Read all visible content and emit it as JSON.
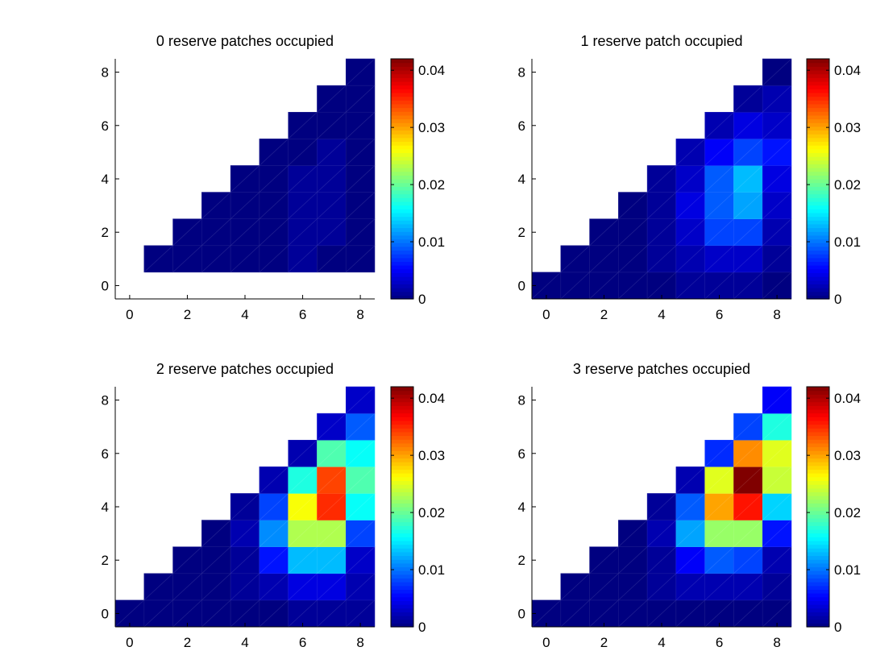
{
  "colormap": "jet",
  "chart_data": [
    {
      "type": "heatmap",
      "title": "0 reserve patches occupied",
      "x_range": [
        -0.5,
        8.5
      ],
      "y_range": [
        -0.5,
        8.5
      ],
      "x_ticks": [
        "0",
        "2",
        "4",
        "6",
        "8"
      ],
      "y_ticks": [
        "0",
        "2",
        "4",
        "6",
        "8"
      ],
      "zlim": [
        0,
        0.042
      ],
      "colorbar_ticks": [
        "0",
        "0.01",
        "0.02",
        "0.03",
        "0.04"
      ],
      "grid": [
        [
          null,
          null,
          null,
          null,
          null,
          null,
          null,
          null,
          null
        ],
        [
          null,
          0.0,
          0.0,
          0.0,
          0.0,
          0.0,
          0.001,
          0.0,
          0.0
        ],
        [
          null,
          null,
          0.0,
          0.0,
          0.0,
          0.0,
          0.001,
          0.001,
          0.0
        ],
        [
          null,
          null,
          null,
          0.0,
          0.0,
          0.0,
          0.001,
          0.001,
          0.0
        ],
        [
          null,
          null,
          null,
          null,
          0.0,
          0.0,
          0.001,
          0.001,
          0.0
        ],
        [
          null,
          null,
          null,
          null,
          null,
          0.0,
          0.0,
          0.001,
          0.0
        ],
        [
          null,
          null,
          null,
          null,
          null,
          null,
          0.0,
          0.0,
          0.0
        ],
        [
          null,
          null,
          null,
          null,
          null,
          null,
          null,
          0.0,
          0.0
        ],
        [
          null,
          null,
          null,
          null,
          null,
          null,
          null,
          null,
          0.0
        ]
      ]
    },
    {
      "type": "heatmap",
      "title": "1 reserve patch occupied",
      "x_range": [
        -0.5,
        8.5
      ],
      "y_range": [
        -0.5,
        8.5
      ],
      "x_ticks": [
        "0",
        "2",
        "4",
        "6",
        "8"
      ],
      "y_ticks": [
        "0",
        "2",
        "4",
        "6",
        "8"
      ],
      "zlim": [
        0,
        0.042
      ],
      "colorbar_ticks": [
        "0",
        "0.01",
        "0.02",
        "0.03",
        "0.04"
      ],
      "grid": [
        [
          0.0,
          0.0,
          0.0,
          0.0,
          0.0,
          0.001,
          0.001,
          0.001,
          0.0
        ],
        [
          null,
          0.0,
          0.0,
          0.0,
          0.001,
          0.002,
          0.003,
          0.003,
          0.001
        ],
        [
          null,
          null,
          0.0,
          0.0,
          0.001,
          0.003,
          0.008,
          0.008,
          0.002
        ],
        [
          null,
          null,
          null,
          0.0,
          0.001,
          0.004,
          0.009,
          0.012,
          0.003
        ],
        [
          null,
          null,
          null,
          null,
          0.001,
          0.003,
          0.009,
          0.013,
          0.004
        ],
        [
          null,
          null,
          null,
          null,
          null,
          0.002,
          0.005,
          0.008,
          0.006
        ],
        [
          null,
          null,
          null,
          null,
          null,
          null,
          0.002,
          0.004,
          0.003
        ],
        [
          null,
          null,
          null,
          null,
          null,
          null,
          null,
          0.001,
          0.002
        ],
        [
          null,
          null,
          null,
          null,
          null,
          null,
          null,
          null,
          0.0
        ]
      ]
    },
    {
      "type": "heatmap",
      "title": "2 reserve patches occupied",
      "x_range": [
        -0.5,
        8.5
      ],
      "y_range": [
        -0.5,
        8.5
      ],
      "x_ticks": [
        "0",
        "2",
        "4",
        "6",
        "8"
      ],
      "y_ticks": [
        "0",
        "2",
        "4",
        "6",
        "8"
      ],
      "zlim": [
        0,
        0.042
      ],
      "colorbar_ticks": [
        "0",
        "0.01",
        "0.02",
        "0.03",
        "0.04"
      ],
      "grid": [
        [
          0.0,
          0.0,
          0.0,
          0.0,
          0.0,
          0.0,
          0.001,
          0.001,
          0.001
        ],
        [
          null,
          0.0,
          0.0,
          0.0,
          0.001,
          0.002,
          0.004,
          0.004,
          0.002
        ],
        [
          null,
          null,
          0.0,
          0.0,
          0.001,
          0.006,
          0.013,
          0.013,
          0.003
        ],
        [
          null,
          null,
          null,
          0.0,
          0.002,
          0.011,
          0.023,
          0.023,
          0.008
        ],
        [
          null,
          null,
          null,
          null,
          0.001,
          0.008,
          0.026,
          0.035,
          0.016
        ],
        [
          null,
          null,
          null,
          null,
          null,
          0.002,
          0.017,
          0.034,
          0.019
        ],
        [
          null,
          null,
          null,
          null,
          null,
          null,
          0.002,
          0.019,
          0.016
        ],
        [
          null,
          null,
          null,
          null,
          null,
          null,
          null,
          0.003,
          0.009
        ],
        [
          null,
          null,
          null,
          null,
          null,
          null,
          null,
          null,
          0.003
        ]
      ]
    },
    {
      "type": "heatmap",
      "title": "3 reserve patches occupied",
      "x_range": [
        -0.5,
        8.5
      ],
      "y_range": [
        -0.5,
        8.5
      ],
      "x_ticks": [
        "0",
        "2",
        "4",
        "6",
        "8"
      ],
      "y_ticks": [
        "0",
        "2",
        "4",
        "6",
        "8"
      ],
      "zlim": [
        0,
        0.042
      ],
      "colorbar_ticks": [
        "0",
        "0.01",
        "0.02",
        "0.03",
        "0.04"
      ],
      "grid": [
        [
          0.0,
          0.0,
          0.0,
          0.0,
          0.0,
          0.0,
          0.0,
          0.0,
          0.0
        ],
        [
          null,
          0.0,
          0.0,
          0.0,
          0.001,
          0.002,
          0.002,
          0.002,
          0.001
        ],
        [
          null,
          null,
          0.0,
          0.0,
          0.001,
          0.005,
          0.009,
          0.008,
          0.002
        ],
        [
          null,
          null,
          null,
          0.0,
          0.002,
          0.012,
          0.022,
          0.022,
          0.006
        ],
        [
          null,
          null,
          null,
          null,
          0.001,
          0.009,
          0.03,
          0.036,
          0.014
        ],
        [
          null,
          null,
          null,
          null,
          null,
          0.002,
          0.025,
          0.042,
          0.024
        ],
        [
          null,
          null,
          null,
          null,
          null,
          null,
          0.007,
          0.031,
          0.025
        ],
        [
          null,
          null,
          null,
          null,
          null,
          null,
          null,
          0.008,
          0.017
        ],
        [
          null,
          null,
          null,
          null,
          null,
          null,
          null,
          null,
          0.005
        ]
      ]
    }
  ]
}
